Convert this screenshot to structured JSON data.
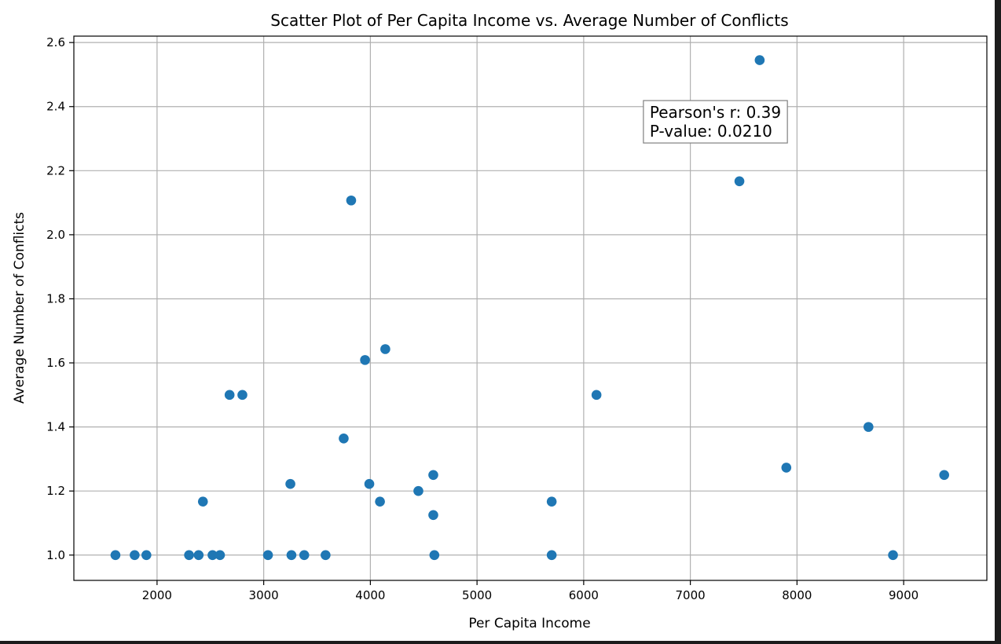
{
  "chart_data": {
    "type": "scatter",
    "title": "Scatter Plot of Per Capita Income vs. Average Number of Conflicts",
    "xlabel": "Per Capita Income",
    "ylabel": "Average Number of Conflicts",
    "xlim": [
      1220,
      9780
    ],
    "ylim": [
      0.921,
      2.62
    ],
    "xticks": [
      2000,
      3000,
      4000,
      5000,
      6000,
      7000,
      8000,
      9000
    ],
    "yticks": [
      1.0,
      1.2,
      1.4,
      1.6,
      1.8,
      2.0,
      2.2,
      2.4,
      2.6
    ],
    "xtick_labels": [
      "2000",
      "3000",
      "4000",
      "5000",
      "6000",
      "7000",
      "8000",
      "9000"
    ],
    "ytick_labels": [
      "1.0",
      "1.2",
      "1.4",
      "1.6",
      "1.8",
      "2.0",
      "2.2",
      "2.4",
      "2.6"
    ],
    "grid": true,
    "marker_color": "#1f77b4",
    "points": [
      {
        "x": 1610,
        "y": 1.0
      },
      {
        "x": 1790,
        "y": 1.0
      },
      {
        "x": 1900,
        "y": 1.0
      },
      {
        "x": 2300,
        "y": 1.0
      },
      {
        "x": 2390,
        "y": 1.0
      },
      {
        "x": 2520,
        "y": 1.0
      },
      {
        "x": 2590,
        "y": 1.0
      },
      {
        "x": 2430,
        "y": 1.167
      },
      {
        "x": 2680,
        "y": 1.5
      },
      {
        "x": 2800,
        "y": 1.5
      },
      {
        "x": 3040,
        "y": 1.0
      },
      {
        "x": 3250,
        "y": 1.222
      },
      {
        "x": 3260,
        "y": 1.0
      },
      {
        "x": 3380,
        "y": 1.0
      },
      {
        "x": 3580,
        "y": 1.0
      },
      {
        "x": 3750,
        "y": 1.364
      },
      {
        "x": 3820,
        "y": 2.107
      },
      {
        "x": 3950,
        "y": 1.609
      },
      {
        "x": 3990,
        "y": 1.222
      },
      {
        "x": 4090,
        "y": 1.167
      },
      {
        "x": 4140,
        "y": 1.643
      },
      {
        "x": 4450,
        "y": 1.2
      },
      {
        "x": 4590,
        "y": 1.25
      },
      {
        "x": 4590,
        "y": 1.125
      },
      {
        "x": 4600,
        "y": 1.0
      },
      {
        "x": 5700,
        "y": 1.167
      },
      {
        "x": 5700,
        "y": 1.0
      },
      {
        "x": 6120,
        "y": 1.5
      },
      {
        "x": 7460,
        "y": 2.167
      },
      {
        "x": 7650,
        "y": 2.545
      },
      {
        "x": 7900,
        "y": 1.273
      },
      {
        "x": 8670,
        "y": 1.4
      },
      {
        "x": 8900,
        "y": 1.0
      },
      {
        "x": 9380,
        "y": 1.25
      }
    ],
    "annotation": {
      "lines": [
        "Pearson's r: 0.39",
        "P-value: 0.0210"
      ],
      "anchor": [
        6560,
        2.36
      ]
    }
  }
}
